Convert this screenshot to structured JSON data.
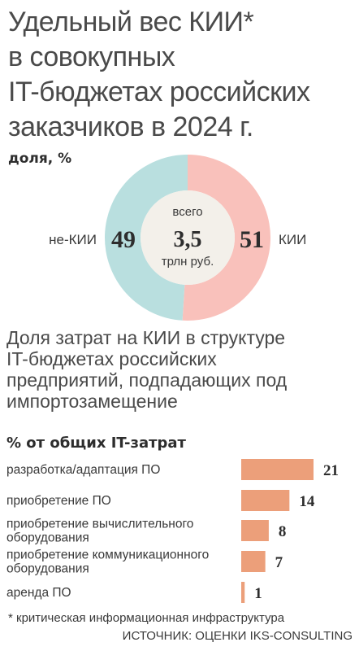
{
  "title_lines": [
    "Удельный вес КИИ*",
    "в совокупных",
    "IT-бюджетах российских",
    "заказчиков в 2024 г."
  ],
  "unit1": "доля, %",
  "donut": {
    "center_top": "всего",
    "center_value": "3,5",
    "center_bottom": "трлн руб."
  },
  "subtitle_lines": [
    "Доля затрат на КИИ в структуре",
    "IT-бюджетах российских",
    "предприятий, подпадающих под",
    "импортозамещение"
  ],
  "unit2": "% от общих IT-затрат",
  "footnote": "* критическая информационная инфраструктура",
  "source": "ИСТОЧНИК: ОЦЕНКИ IKS-CONSULTING",
  "colors": {
    "kii": "#f9c1bb",
    "non_kii": "#b9dfdf",
    "center": "#f3f0ea",
    "bar": "#ec9f7a"
  },
  "chart_data": [
    {
      "type": "pie",
      "categories": [
        "не-КИИ",
        "КИИ"
      ],
      "values": [
        49,
        51
      ],
      "value_labels": [
        "49",
        "51"
      ]
    },
    {
      "type": "bar",
      "categories": [
        [
          "разработка/адаптация ПО"
        ],
        [
          "приобретение ПО"
        ],
        [
          "приобретение вычислительного",
          "оборудования"
        ],
        [
          "приобретение коммуникационного",
          "оборудования"
        ],
        [
          "аренда ПО"
        ]
      ],
      "values": [
        21,
        14,
        8,
        7,
        1
      ],
      "value_labels": [
        "21",
        "14",
        "8",
        "7",
        "1"
      ]
    }
  ]
}
